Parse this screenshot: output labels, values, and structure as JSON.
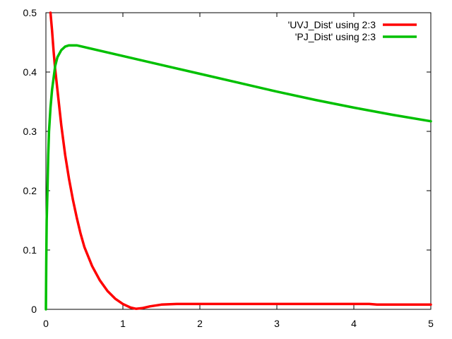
{
  "chart_data": {
    "type": "line",
    "title": "",
    "xlabel": "",
    "ylabel": "",
    "xlim": [
      0,
      5
    ],
    "ylim": [
      0,
      0.5
    ],
    "x_ticks": [
      "0",
      "1",
      "2",
      "3",
      "4",
      "5"
    ],
    "y_ticks": [
      "0",
      "0.1",
      "0.2",
      "0.3",
      "0.4",
      "0.5"
    ],
    "grid": false,
    "legend_position": "top-right",
    "series": [
      {
        "name": "'UVJ_Dist' using 2:3",
        "color": "#ff0000",
        "points": [
          [
            0.06,
            0.5
          ],
          [
            0.08,
            0.47
          ],
          [
            0.1,
            0.435
          ],
          [
            0.12,
            0.405
          ],
          [
            0.15,
            0.37
          ],
          [
            0.2,
            0.31
          ],
          [
            0.25,
            0.26
          ],
          [
            0.3,
            0.22
          ],
          [
            0.35,
            0.185
          ],
          [
            0.4,
            0.155
          ],
          [
            0.45,
            0.128
          ],
          [
            0.5,
            0.105
          ],
          [
            0.6,
            0.073
          ],
          [
            0.7,
            0.049
          ],
          [
            0.8,
            0.031
          ],
          [
            0.9,
            0.018
          ],
          [
            1.0,
            0.009
          ],
          [
            1.1,
            0.003
          ],
          [
            1.17,
            0.001
          ],
          [
            1.25,
            0.002
          ],
          [
            1.35,
            0.005
          ],
          [
            1.5,
            0.008
          ],
          [
            1.7,
            0.009
          ],
          [
            2.0,
            0.009
          ],
          [
            3.0,
            0.009
          ],
          [
            4.2,
            0.009
          ],
          [
            4.3,
            0.008
          ],
          [
            5.0,
            0.008
          ]
        ]
      },
      {
        "name": "'PJ_Dist' using 2:3",
        "color": "#00c000",
        "points": [
          [
            0.0,
            0.0
          ],
          [
            0.005,
            0.08
          ],
          [
            0.01,
            0.15
          ],
          [
            0.02,
            0.2
          ],
          [
            0.03,
            0.26
          ],
          [
            0.04,
            0.3
          ],
          [
            0.06,
            0.34
          ],
          [
            0.08,
            0.37
          ],
          [
            0.1,
            0.39
          ],
          [
            0.12,
            0.41
          ],
          [
            0.15,
            0.425
          ],
          [
            0.2,
            0.437
          ],
          [
            0.25,
            0.443
          ],
          [
            0.3,
            0.445
          ],
          [
            0.4,
            0.445
          ],
          [
            0.5,
            0.442
          ],
          [
            1.0,
            0.427
          ],
          [
            1.5,
            0.412
          ],
          [
            2.0,
            0.397
          ],
          [
            2.5,
            0.382
          ],
          [
            3.0,
            0.367
          ],
          [
            3.5,
            0.353
          ],
          [
            4.0,
            0.34
          ],
          [
            4.5,
            0.328
          ],
          [
            5.0,
            0.317
          ]
        ]
      }
    ]
  }
}
